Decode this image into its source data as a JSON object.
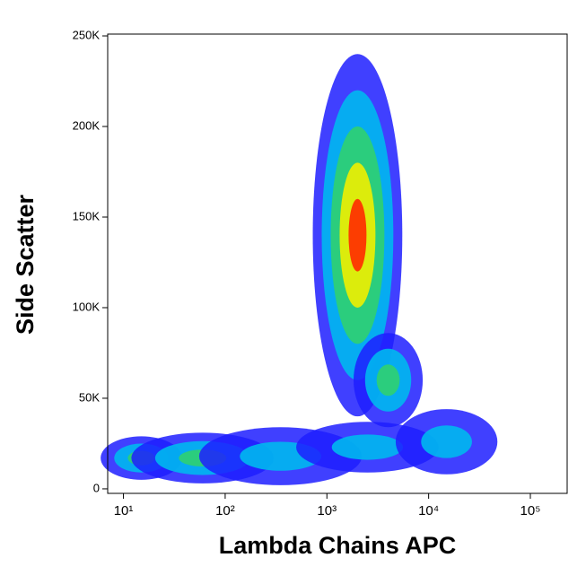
{
  "chart_data": {
    "type": "density",
    "x_label": "Lambda Chains APC",
    "y_label": "Side Scatter",
    "xscale": "log",
    "xlim": [
      7,
      230000
    ],
    "xticks": [
      {
        "value": 10,
        "label": "10¹"
      },
      {
        "value": 100,
        "label": "10²"
      },
      {
        "value": 1000,
        "label": "10³"
      },
      {
        "value": 10000,
        "label": "10⁴"
      },
      {
        "value": 100000,
        "label": "10⁵"
      }
    ],
    "ylim": [
      -2500,
      251000
    ],
    "yticks": [
      0,
      {
        "value": 50000,
        "label": "50K"
      },
      {
        "value": 100000,
        "label": "100K"
      },
      {
        "value": 150000,
        "label": "150K"
      },
      {
        "value": 200000,
        "label": "200K"
      },
      {
        "value": 250000,
        "label": "250K"
      }
    ],
    "colormap": [
      "#1f1fff",
      "#00b8f0",
      "#30d070",
      "#f0f000",
      "#ff2a00"
    ],
    "populations": [
      {
        "x": 2000,
        "y": 140000,
        "x_spread": 0.22,
        "y_spread": 50000,
        "peak": 5
      },
      {
        "x": 4000,
        "y": 60000,
        "x_spread": 0.17,
        "y_spread": 13000,
        "peak": 3
      },
      {
        "x": 15,
        "y": 17000,
        "x_spread": 0.2,
        "y_spread": 6000,
        "peak": 3
      },
      {
        "x": 60,
        "y": 17000,
        "x_spread": 0.35,
        "y_spread": 7000,
        "peak": 3
      },
      {
        "x": 350,
        "y": 18000,
        "x_spread": 0.4,
        "y_spread": 8000,
        "peak": 2
      },
      {
        "x": 2500,
        "y": 23000,
        "x_spread": 0.35,
        "y_spread": 7000,
        "peak": 2
      },
      {
        "x": 15000,
        "y": 26000,
        "x_spread": 0.25,
        "y_spread": 9000,
        "peak": 2
      }
    ]
  }
}
